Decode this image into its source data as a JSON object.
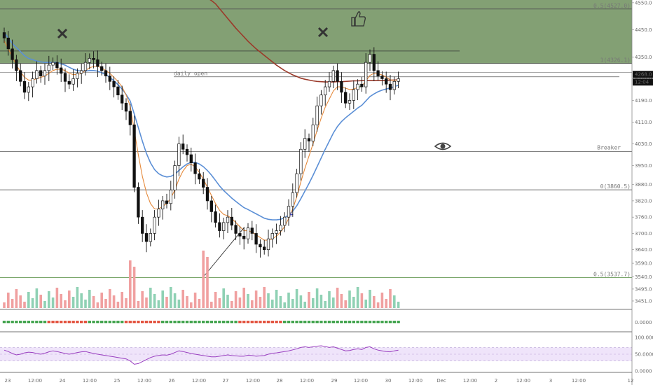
{
  "colors": {
    "zone_fill": "#6d8f5c",
    "up": "#ffffff",
    "down": "#111111",
    "ma_fast": "#e58a3c",
    "ma_mid": "#5b8fd6",
    "ma_slow": "#9b3a2a",
    "vol_up": "#8fd1b4",
    "vol_down": "#f0a0a0",
    "rsi_line": "#9a3fc0",
    "rsi_band": "#efe4fa",
    "dot_green": "#2e9a3a",
    "dot_red": "#e0402a"
  },
  "icons": {
    "marker_1": "x-mark-icon",
    "marker_2": "x-mark-icon",
    "thumb": "thumbs-up-icon",
    "eye": "eye-icon"
  },
  "chart_data": [
    {
      "type": "candlestick",
      "title": "",
      "xlabel": "",
      "ylabel": "",
      "x_range": [
        "Nov 23",
        "Dec 3 12:00"
      ],
      "ylim": [
        3420,
        4560
      ],
      "y_ticks": [
        "4550.0",
        "4450.0",
        "4350.0",
        "4270.0",
        "4190.0",
        "4110.0",
        "4030.0",
        "3950.0",
        "3880.0",
        "3820.0",
        "3760.0",
        "3700.0",
        "3640.0",
        "3590.0",
        "3540.0",
        "3495.0",
        "3451.0"
      ],
      "x_ticks": [
        "23",
        "12:00",
        "24",
        "12:00",
        "25",
        "12:00",
        "26",
        "12:00",
        "27",
        "12:00",
        "28",
        "12:00",
        "29",
        "12:00",
        "30",
        "12:00",
        "Dec",
        "12:00",
        "2",
        "12:00",
        "3",
        "12:00",
        "12"
      ],
      "price_label": "4268.0",
      "time_label": "12:04",
      "levels": [
        {
          "label": "0.5(4527.0)",
          "value": 4527
        },
        {
          "label": "1(4326.1)",
          "value": 4326.1
        },
        {
          "label": "daily open",
          "value": 4277
        },
        {
          "label": "Breaker",
          "value": 4002
        },
        {
          "label": "0(3860.5)",
          "value": 3860.5
        },
        {
          "label": "0.5(3537.7)",
          "value": 3537.7
        }
      ],
      "zone": [
        4326.1,
        4560
      ],
      "close": [
        4420,
        4380,
        4340,
        4300,
        4260,
        4220,
        4240,
        4270,
        4300,
        4280,
        4300,
        4320,
        4330,
        4310,
        4290,
        4260,
        4250,
        4270,
        4290,
        4300,
        4330,
        4345,
        4340,
        4315,
        4300,
        4280,
        4260,
        4240,
        4210,
        4180,
        4150,
        4100,
        3870,
        3760,
        3700,
        3670,
        3700,
        3760,
        3790,
        3820,
        3810,
        3860,
        3950,
        4030,
        4010,
        3990,
        3960,
        3920,
        3900,
        3870,
        3820,
        3780,
        3740,
        3710,
        3740,
        3760,
        3730,
        3700,
        3690,
        3680,
        3720,
        3700,
        3660,
        3650,
        3640,
        3680,
        3700,
        3710,
        3730,
        3760,
        3800,
        3850,
        3920,
        4010,
        4050,
        4040,
        4100,
        4170,
        4210,
        4240,
        4260,
        4300,
        4260,
        4220,
        4180,
        4190,
        4230,
        4250,
        4240,
        4330,
        4360,
        4300,
        4280,
        4270,
        4250,
        4230,
        4260,
        4270
      ],
      "ma_fast": [
        4410,
        4380,
        4350,
        4320,
        4295,
        4275,
        4265,
        4265,
        4270,
        4275,
        4280,
        4290,
        4300,
        4305,
        4305,
        4300,
        4290,
        4285,
        4285,
        4290,
        4300,
        4310,
        4315,
        4315,
        4310,
        4300,
        4290,
        4275,
        4260,
        4240,
        4210,
        4170,
        4080,
        3990,
        3910,
        3850,
        3810,
        3790,
        3790,
        3800,
        3810,
        3830,
        3860,
        3900,
        3930,
        3950,
        3955,
        3945,
        3925,
        3900,
        3870,
        3840,
        3810,
        3785,
        3770,
        3765,
        3755,
        3740,
        3725,
        3710,
        3710,
        3705,
        3695,
        3685,
        3675,
        3675,
        3680,
        3690,
        3705,
        3725,
        3755,
        3790,
        3835,
        3890,
        3940,
        3985,
        4030,
        4080,
        4125,
        4165,
        4195,
        4225,
        4240,
        4240,
        4235,
        4230,
        4232,
        4238,
        4242,
        4262,
        4282,
        4290,
        4288,
        4284,
        4276,
        4266,
        4264,
        4266
      ],
      "ma_mid": [
        4440,
        4420,
        4400,
        4385,
        4370,
        4355,
        4345,
        4340,
        4335,
        4332,
        4330,
        4330,
        4330,
        4330,
        4325,
        4320,
        4312,
        4305,
        4300,
        4298,
        4298,
        4300,
        4300,
        4298,
        4292,
        4285,
        4275,
        4262,
        4248,
        4232,
        4212,
        4188,
        4140,
        4090,
        4040,
        3995,
        3960,
        3935,
        3920,
        3912,
        3908,
        3910,
        3918,
        3932,
        3945,
        3956,
        3962,
        3962,
        3956,
        3946,
        3932,
        3915,
        3895,
        3875,
        3858,
        3844,
        3830,
        3818,
        3806,
        3795,
        3788,
        3780,
        3772,
        3764,
        3756,
        3752,
        3750,
        3750,
        3752,
        3758,
        3768,
        3782,
        3802,
        3828,
        3856,
        3884,
        3914,
        3946,
        3978,
        4010,
        4040,
        4070,
        4094,
        4112,
        4126,
        4138,
        4150,
        4162,
        4172,
        4188,
        4204,
        4214,
        4222,
        4228,
        4232,
        4236,
        4241,
        4246
      ],
      "ma_slow": [
        4960,
        4940,
        4920,
        4900,
        4880,
        4862,
        4845,
        4828,
        4812,
        4797,
        4782,
        4768,
        4754,
        4741,
        4728,
        4715,
        4703,
        4691,
        4680,
        4669,
        4658,
        4648,
        4638,
        4628,
        4618,
        4608,
        4598,
        4588,
        4578,
        4568,
        4558,
        4546,
        4528,
        4510,
        4492,
        4474,
        4456,
        4440,
        4424,
        4408,
        4394,
        4380,
        4368,
        4356,
        4344,
        4332,
        4320,
        4310,
        4300,
        4292,
        4284,
        4278,
        4272,
        4268,
        4265,
        4262,
        4260,
        4259,
        4258,
        4258,
        4258,
        4259,
        4259,
        4260,
        4261,
        4262,
        4262,
        4263,
        4263,
        4263,
        4263,
        4264,
        4264,
        4264,
        4265,
        4265,
        4266
      ],
      "volume_panel_ticks": [
        "3495.0",
        "3451.0"
      ],
      "signal_panel_ticks": [
        "0.0000"
      ],
      "rsi": {
        "ticks": [
          "100.0000",
          "50.0000",
          "0.0000"
        ],
        "band": [
          30,
          70
        ],
        "values": [
          62,
          58,
          52,
          48,
          50,
          54,
          56,
          55,
          52,
          50,
          53,
          57,
          60,
          58,
          55,
          52,
          50,
          52,
          55,
          57,
          58,
          55,
          52,
          50,
          48,
          46,
          44,
          42,
          40,
          38,
          36,
          30,
          20,
          22,
          28,
          34,
          40,
          44,
          46,
          48,
          47,
          50,
          55,
          60,
          58,
          55,
          52,
          50,
          48,
          46,
          44,
          42,
          42,
          44,
          46,
          48,
          46,
          45,
          44,
          44,
          47,
          46,
          44,
          45,
          46,
          50,
          53,
          54,
          56,
          58,
          60,
          63,
          66,
          70,
          72,
          70,
          72,
          74,
          75,
          73,
          70,
          72,
          68,
          64,
          60,
          61,
          64,
          66,
          64,
          70,
          72,
          66,
          62,
          60,
          58,
          57,
          60,
          62
        ]
      }
    }
  ]
}
